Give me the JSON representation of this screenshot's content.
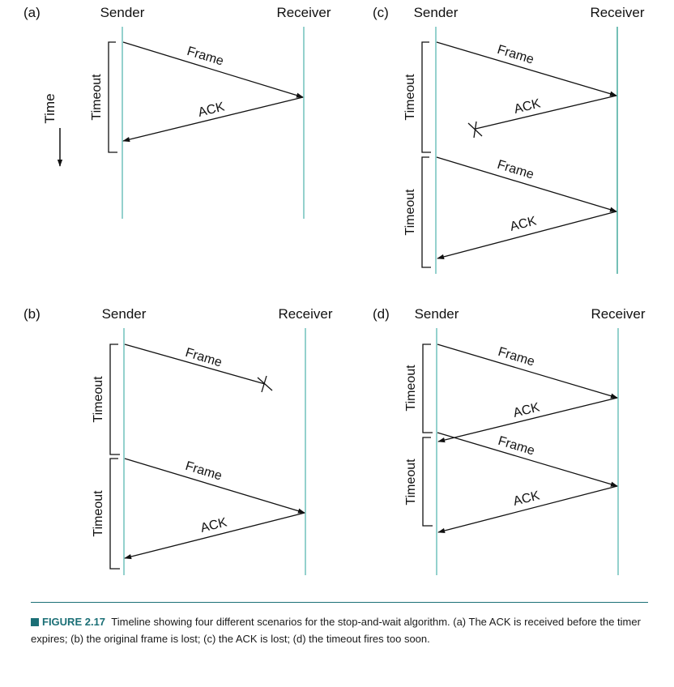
{
  "colors": {
    "lifeline": "#5bb8b2",
    "receiver_lifeline_bold": "#2a9d8f",
    "ink": "#111111",
    "caption_accent": "#1b6f76"
  },
  "axis": {
    "label": "Time"
  },
  "panels": [
    {
      "id": "a",
      "tag": "(a)",
      "sender": "Sender",
      "receiver": "Receiver",
      "timeouts": [
        "Timeout"
      ],
      "messages": [
        {
          "label": "Frame",
          "direction": "to-receiver",
          "lost": false
        },
        {
          "label": "ACK",
          "direction": "to-sender",
          "lost": false
        }
      ]
    },
    {
      "id": "b",
      "tag": "(b)",
      "sender": "Sender",
      "receiver": "Receiver",
      "timeouts": [
        "Timeout",
        "Timeout"
      ],
      "messages": [
        {
          "label": "Frame",
          "direction": "to-receiver",
          "lost": true
        },
        {
          "label": "Frame",
          "direction": "to-receiver",
          "lost": false
        },
        {
          "label": "ACK",
          "direction": "to-sender",
          "lost": false
        }
      ]
    },
    {
      "id": "c",
      "tag": "(c)",
      "sender": "Sender",
      "receiver": "Receiver",
      "timeouts": [
        "Timeout",
        "Timeout"
      ],
      "messages": [
        {
          "label": "Frame",
          "direction": "to-receiver",
          "lost": false
        },
        {
          "label": "ACK",
          "direction": "to-sender",
          "lost": true
        },
        {
          "label": "Frame",
          "direction": "to-receiver",
          "lost": false
        },
        {
          "label": "ACK",
          "direction": "to-sender",
          "lost": false
        }
      ]
    },
    {
      "id": "d",
      "tag": "(d)",
      "sender": "Sender",
      "receiver": "Receiver",
      "timeouts": [
        "Timeout",
        "Timeout"
      ],
      "messages": [
        {
          "label": "Frame",
          "direction": "to-receiver",
          "lost": false
        },
        {
          "label": "ACK",
          "direction": "to-sender",
          "lost": false
        },
        {
          "label": "Frame",
          "direction": "to-receiver",
          "lost": false
        },
        {
          "label": "ACK",
          "direction": "to-sender",
          "lost": false
        }
      ]
    }
  ],
  "caption": {
    "tag": "FIGURE 2.17",
    "text": "Timeline showing four different scenarios for the stop-and-wait algorithm. (a) The ACK is received before the timer expires; (b) the original frame is lost; (c) the ACK is lost; (d) the timeout fires too soon."
  }
}
